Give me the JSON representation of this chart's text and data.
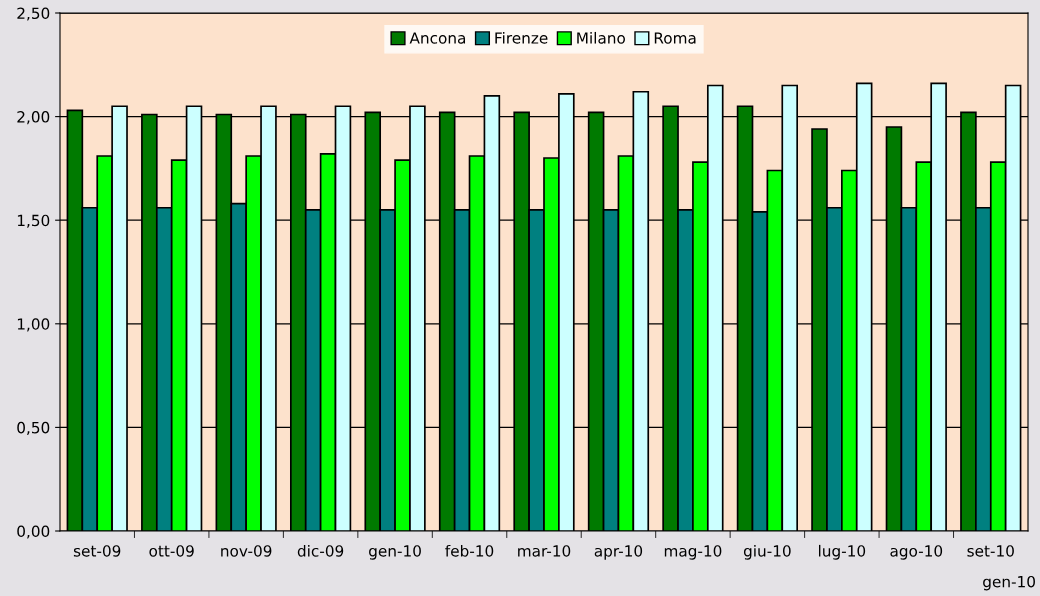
{
  "chart_data": {
    "type": "bar",
    "categories": [
      "set-09",
      "ott-09",
      "nov-09",
      "dic-09",
      "gen-10",
      "feb-10",
      "mar-10",
      "apr-10",
      "mag-10",
      "giu-10",
      "lug-10",
      "ago-10",
      "set-10"
    ],
    "series": [
      {
        "name": "Ancona",
        "color": "#007a00",
        "values": [
          2.03,
          2.01,
          2.01,
          2.01,
          2.02,
          2.02,
          2.02,
          2.02,
          2.05,
          2.05,
          1.94,
          1.95,
          2.02
        ]
      },
      {
        "name": "Firenze",
        "color": "#008080",
        "values": [
          1.56,
          1.56,
          1.58,
          1.55,
          1.55,
          1.55,
          1.55,
          1.55,
          1.55,
          1.54,
          1.56,
          1.56,
          1.56
        ]
      },
      {
        "name": "Milano",
        "color": "#00ff00",
        "values": [
          1.81,
          1.79,
          1.81,
          1.82,
          1.79,
          1.81,
          1.8,
          1.81,
          1.78,
          1.74,
          1.74,
          1.78,
          1.78
        ]
      },
      {
        "name": "Roma",
        "color": "#ccffff",
        "values": [
          2.05,
          2.05,
          2.05,
          2.05,
          2.05,
          2.1,
          2.11,
          2.12,
          2.15,
          2.15,
          2.16,
          2.16,
          2.15
        ]
      }
    ],
    "ylim": [
      0,
      2.5
    ],
    "yticks": [
      {
        "value": 0,
        "label": "0,00"
      },
      {
        "value": 0.5,
        "label": "0,50"
      },
      {
        "value": 1,
        "label": "1,00"
      },
      {
        "value": 1.5,
        "label": "1,50"
      },
      {
        "value": 2,
        "label": "2,00"
      },
      {
        "value": 2.5,
        "label": "2,50"
      }
    ],
    "grid": "y",
    "legend": "top",
    "annotations": [
      "gen-10"
    ]
  }
}
